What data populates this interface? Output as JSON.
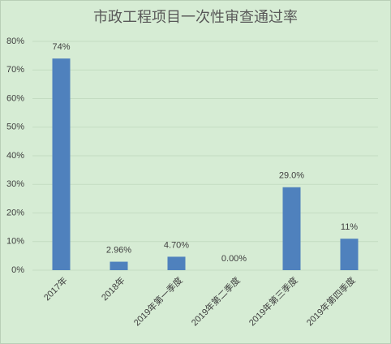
{
  "chart_data": {
    "type": "bar",
    "title": "市政工程项目一次性审查通过率",
    "categories": [
      "2017年",
      "2018年",
      "2019年第一季度",
      "2019年第二季度",
      "2019年第三季度",
      "2019年第四季度"
    ],
    "values": [
      74,
      2.96,
      4.7,
      0.0,
      29.0,
      11
    ],
    "value_labels": [
      "74%",
      "2.96%",
      "4.70%",
      "0.00%",
      "29.0%",
      "11%"
    ],
    "color": "#4f81bd",
    "ylim": [
      0,
      80
    ],
    "yticks": [
      {
        "value": 0,
        "label": "0%"
      },
      {
        "value": 10,
        "label": "10%"
      },
      {
        "value": 20,
        "label": "20%"
      },
      {
        "value": 30,
        "label": "30%"
      },
      {
        "value": 40,
        "label": "40%"
      },
      {
        "value": 50,
        "label": "50%"
      },
      {
        "value": 60,
        "label": "60%"
      },
      {
        "value": 70,
        "label": "70%"
      },
      {
        "value": 80,
        "label": "80%"
      }
    ],
    "grid": true
  }
}
